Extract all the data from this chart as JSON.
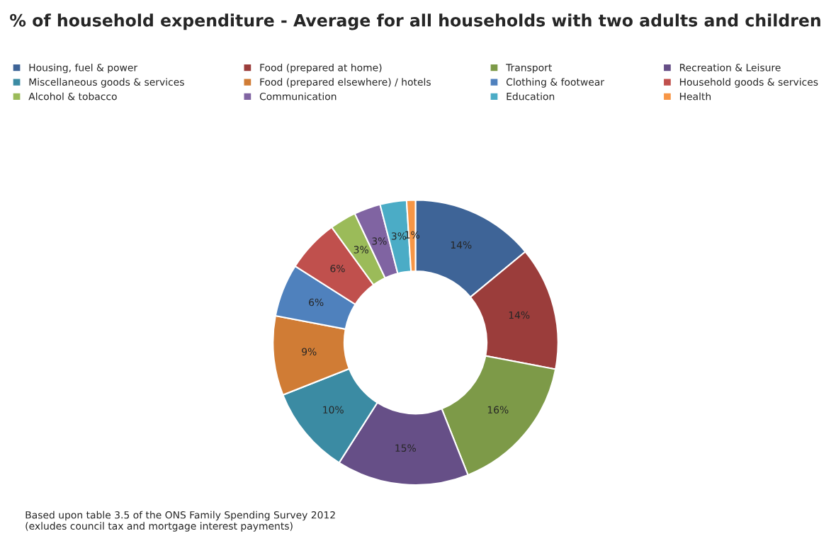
{
  "chart_data": {
    "type": "donut",
    "title": "% of household expenditure - Average for all households with two adults and children",
    "categories": [
      "Housing, fuel & power",
      "Food (prepared at home)",
      "Transport",
      "Recreation & Leisure",
      "Miscellaneous goods & services",
      "Food (prepared elsewhere) / hotels",
      "Clothing & footwear",
      "Household goods & services",
      "Alcohol & tobacco",
      "Communication",
      "Education",
      "Health"
    ],
    "values": [
      14,
      14,
      16,
      15,
      10,
      9,
      6,
      6,
      3,
      3,
      3,
      1
    ],
    "value_labels": [
      "14%",
      "14%",
      "16%",
      "15%",
      "10%",
      "9%",
      "6%",
      "6%",
      "3%",
      "3%",
      "3%",
      "1%"
    ],
    "colors": [
      "#3e6497",
      "#9b3d3b",
      "#7d9a48",
      "#664f87",
      "#3b8ba3",
      "#d07c35",
      "#4f81bd",
      "#c0504d",
      "#9bbb59",
      "#8064a2",
      "#4bacc6",
      "#f79646"
    ],
    "legend": "top",
    "annotations": [
      "Based upon table 3.5 of the ONS Family Spending Survey 2012\n(exludes council tax and mortgage interest payments)"
    ]
  }
}
